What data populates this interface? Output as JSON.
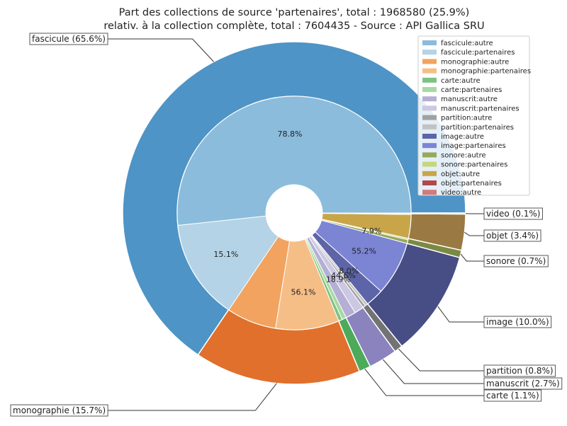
{
  "chart_data": {
    "type": "pie",
    "title_line1": "Part des collections de source 'partenaires', total : 1968580 (25.9%)",
    "title_line2": "relativ. à la collection complète, total : 7604435 - Source : API Gallica SRU",
    "outer": [
      {
        "label": "fascicule (65.6%)",
        "value": 65.6,
        "color": "#4e94c6"
      },
      {
        "label": "monographie (15.7%)",
        "value": 15.7,
        "color": "#e0702c"
      },
      {
        "label": "carte (1.1%)",
        "value": 1.1,
        "color": "#4caa5a"
      },
      {
        "label": "manuscrit (2.7%)",
        "value": 2.7,
        "color": "#8a83be"
      },
      {
        "label": "partition (0.8%)",
        "value": 0.8,
        "color": "#737373"
      },
      {
        "label": "image (10.0%)",
        "value": 10.0,
        "color": "#474d85"
      },
      {
        "label": "sonore (0.7%)",
        "value": 0.7,
        "color": "#7a8a42"
      },
      {
        "label": "objet (3.4%)",
        "value": 3.4,
        "color": "#9a7a42"
      },
      {
        "label": "video (0.1%)",
        "value": 0.1,
        "color": "#c4474d"
      }
    ],
    "inner": [
      {
        "name": "fascicule:autre",
        "value": 51.8,
        "color": "#8bbcdc",
        "pct_label": "78.8%"
      },
      {
        "name": "fascicule:partenaires",
        "value": 13.9,
        "color": "#b4d3e6",
        "pct_label": "15.1%"
      },
      {
        "name": "monographie:autre",
        "value": 6.9,
        "color": "#f2a35f",
        "pct_label": ""
      },
      {
        "name": "monographie:partenaires",
        "value": 8.8,
        "color": "#f6be87",
        "pct_label": "56.1%"
      },
      {
        "name": "carte:autre",
        "value": 0.5,
        "color": "#7cc381",
        "pct_label": ""
      },
      {
        "name": "carte:partenaires",
        "value": 0.6,
        "color": "#a8d9a4",
        "pct_label": ""
      },
      {
        "name": "manuscrit:autre",
        "value": 1.4,
        "color": "#b5afd5",
        "pct_label": ""
      },
      {
        "name": "manuscrit:partenaires",
        "value": 1.3,
        "color": "#ccc7e2",
        "pct_label": "18.9%"
      },
      {
        "name": "partition:autre",
        "value": 0.4,
        "color": "#a1a1a1",
        "pct_label": ""
      },
      {
        "name": "partition:partenaires",
        "value": 0.4,
        "color": "#c2c2c2",
        "pct_label": "44.6%"
      },
      {
        "name": "image:autre",
        "value": 2.5,
        "color": "#5d64a8",
        "pct_label": "8.0%"
      },
      {
        "name": "image:partenaires",
        "value": 7.5,
        "color": "#7c84d4",
        "pct_label": "55.2%"
      },
      {
        "name": "sonore:autre",
        "value": 0.5,
        "color": "#98a85c",
        "pct_label": ""
      },
      {
        "name": "sonore:partenaires",
        "value": 0.2,
        "color": "#c6d67c",
        "pct_label": "7.9%"
      },
      {
        "name": "objet:autre",
        "value": 3.3,
        "color": "#c9a54a",
        "pct_label": ""
      },
      {
        "name": "objet:partenaires",
        "value": 0.1,
        "color": "#b0484c",
        "pct_label": ""
      },
      {
        "name": "video:autre",
        "value": 0.1,
        "color": "#d47a7c",
        "pct_label": ""
      }
    ],
    "legend_entries": [
      "fascicule:autre",
      "fascicule:partenaires",
      "monographie:autre",
      "monographie:partenaires",
      "carte:autre",
      "carte:partenaires",
      "manuscrit:autre",
      "manuscrit:partenaires",
      "partition:autre",
      "partition:partenaires",
      "image:autre",
      "image:partenaires",
      "sonore:autre",
      "sonore:partenaires",
      "objet:autre",
      "objet:partenaires",
      "video:autre"
    ],
    "legend_position": "top-right"
  }
}
